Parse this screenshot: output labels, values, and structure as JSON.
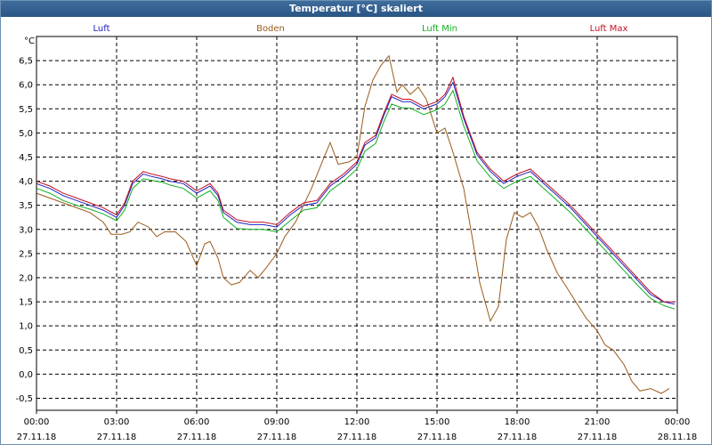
{
  "window": {
    "title": "Temperatur [°C] skaliert"
  },
  "chart_data": {
    "type": "line",
    "title": "Temperatur [°C] skaliert",
    "ylabel": "°C",
    "ylim": [
      -0.75,
      7.0
    ],
    "xlim": [
      0,
      24
    ],
    "grid": true,
    "yticks": [
      {
        "v": 6.5,
        "label": "6,5"
      },
      {
        "v": 6.0,
        "label": "6,0"
      },
      {
        "v": 5.5,
        "label": "5,5"
      },
      {
        "v": 5.0,
        "label": "5,0"
      },
      {
        "v": 4.5,
        "label": "4,5"
      },
      {
        "v": 4.0,
        "label": "4,0"
      },
      {
        "v": 3.5,
        "label": "3,5"
      },
      {
        "v": 3.0,
        "label": "3,0"
      },
      {
        "v": 2.5,
        "label": "2,5"
      },
      {
        "v": 2.0,
        "label": "2,0"
      },
      {
        "v": 1.5,
        "label": "1,5"
      },
      {
        "v": 1.0,
        "label": "1,0"
      },
      {
        "v": 0.5,
        "label": "0,5"
      },
      {
        "v": 0.0,
        "label": "0,0"
      },
      {
        "v": -0.5,
        "label": "-0,5"
      }
    ],
    "xticks": [
      {
        "v": 0,
        "time": "00:00",
        "date": "27.11.18"
      },
      {
        "v": 3,
        "time": "03:00",
        "date": "27.11.18"
      },
      {
        "v": 6,
        "time": "06:00",
        "date": "27.11.18"
      },
      {
        "v": 9,
        "time": "09:00",
        "date": "27.11.18"
      },
      {
        "v": 12,
        "time": "12:00",
        "date": "27.11.18"
      },
      {
        "v": 15,
        "time": "15:00",
        "date": "27.11.18"
      },
      {
        "v": 18,
        "time": "18:00",
        "date": "27.11.18"
      },
      {
        "v": 21,
        "time": "21:00",
        "date": "27.11.18"
      },
      {
        "v": 24,
        "time": "00:00",
        "date": "28.11.18"
      }
    ],
    "series": [
      {
        "name": "Luft",
        "color": "#2020c0",
        "x": [
          0,
          0.5,
          1,
          1.5,
          2,
          2.5,
          3,
          3.3,
          3.6,
          4,
          4.3,
          4.7,
          5,
          5.5,
          6,
          6.5,
          6.8,
          7,
          7.5,
          8,
          8.5,
          9,
          9.5,
          10,
          10.5,
          11,
          11.5,
          12,
          12.3,
          12.7,
          13,
          13.3,
          13.7,
          14,
          14.5,
          15,
          15.3,
          15.6,
          16,
          16.5,
          17,
          17.5,
          18,
          18.5,
          19,
          19.5,
          20,
          20.5,
          21,
          21.5,
          22,
          22.5,
          23,
          23.5,
          23.9
        ],
        "y": [
          3.95,
          3.85,
          3.7,
          3.6,
          3.5,
          3.4,
          3.25,
          3.5,
          3.95,
          4.15,
          4.1,
          4.05,
          4.0,
          3.95,
          3.75,
          3.9,
          3.7,
          3.35,
          3.15,
          3.1,
          3.1,
          3.05,
          3.3,
          3.5,
          3.55,
          3.9,
          4.1,
          4.35,
          4.75,
          4.9,
          5.35,
          5.75,
          5.65,
          5.65,
          5.5,
          5.6,
          5.75,
          6.05,
          5.3,
          4.55,
          4.2,
          3.95,
          4.1,
          4.2,
          3.95,
          3.7,
          3.45,
          3.15,
          2.85,
          2.55,
          2.25,
          1.95,
          1.65,
          1.5,
          1.45
        ]
      },
      {
        "name": "Boden",
        "color": "#9a5a1a",
        "x": [
          0,
          0.5,
          1,
          1.5,
          2,
          2.5,
          2.8,
          3.2,
          3.5,
          3.8,
          4.2,
          4.5,
          4.8,
          5.2,
          5.6,
          6,
          6.3,
          6.5,
          6.8,
          7,
          7.3,
          7.6,
          8,
          8.3,
          8.6,
          9,
          9.3,
          9.7,
          10,
          10.3,
          10.7,
          11,
          11.3,
          11.7,
          12,
          12.3,
          12.6,
          12.9,
          13.2,
          13.5,
          13.7,
          14,
          14.3,
          14.6,
          15,
          15.3,
          15.6,
          16,
          16.3,
          16.6,
          17,
          17.3,
          17.6,
          17.9,
          18.2,
          18.5,
          18.8,
          19.1,
          19.5,
          19.8,
          20.2,
          20.6,
          21,
          21.3,
          21.6,
          22,
          22.3,
          22.6,
          23,
          23.4,
          23.7
        ],
        "y": [
          3.75,
          3.65,
          3.55,
          3.45,
          3.35,
          3.15,
          2.9,
          2.9,
          2.95,
          3.15,
          3.05,
          2.85,
          2.95,
          2.95,
          2.75,
          2.25,
          2.7,
          2.75,
          2.4,
          2.0,
          1.85,
          1.9,
          2.15,
          2.0,
          2.2,
          2.5,
          2.85,
          3.15,
          3.5,
          3.85,
          4.4,
          4.8,
          4.35,
          4.4,
          4.5,
          5.55,
          6.1,
          6.4,
          6.6,
          5.85,
          6.0,
          5.8,
          5.95,
          5.7,
          5.0,
          5.1,
          4.6,
          3.85,
          2.9,
          1.9,
          1.1,
          1.4,
          2.8,
          3.35,
          3.25,
          3.35,
          3.05,
          2.6,
          2.1,
          1.85,
          1.5,
          1.15,
          0.9,
          0.6,
          0.5,
          0.2,
          -0.15,
          -0.35,
          -0.3,
          -0.4,
          -0.3
        ]
      },
      {
        "name": "Luft Min",
        "color": "#10b020",
        "x": [
          0,
          0.5,
          1,
          1.5,
          2,
          2.5,
          3,
          3.3,
          3.6,
          4,
          4.3,
          4.7,
          5,
          5.5,
          6,
          6.5,
          6.8,
          7,
          7.5,
          8,
          8.5,
          9,
          9.5,
          10,
          10.5,
          11,
          11.5,
          12,
          12.3,
          12.7,
          13,
          13.3,
          13.7,
          14,
          14.5,
          15,
          15.3,
          15.6,
          16,
          16.5,
          17,
          17.5,
          18,
          18.5,
          19,
          19.5,
          20,
          20.5,
          21,
          21.5,
          22,
          22.5,
          23,
          23.5,
          23.9
        ],
        "y": [
          3.85,
          3.75,
          3.6,
          3.5,
          3.42,
          3.32,
          3.18,
          3.4,
          3.85,
          4.05,
          4.02,
          3.98,
          3.92,
          3.85,
          3.65,
          3.8,
          3.6,
          3.25,
          3.02,
          3.0,
          3.0,
          2.95,
          3.18,
          3.4,
          3.45,
          3.8,
          4.0,
          4.25,
          4.62,
          4.78,
          5.22,
          5.6,
          5.52,
          5.52,
          5.38,
          5.48,
          5.6,
          5.88,
          5.15,
          4.42,
          4.08,
          3.85,
          4.0,
          4.1,
          3.85,
          3.6,
          3.35,
          3.05,
          2.75,
          2.45,
          2.15,
          1.85,
          1.57,
          1.42,
          1.35
        ]
      },
      {
        "name": "Luft Max",
        "color": "#c01020",
        "x": [
          0,
          0.5,
          1,
          1.5,
          2,
          2.5,
          3,
          3.3,
          3.6,
          4,
          4.3,
          4.7,
          5,
          5.5,
          6,
          6.5,
          6.8,
          7,
          7.5,
          8,
          8.5,
          9,
          9.5,
          10,
          10.5,
          11,
          11.5,
          12,
          12.3,
          12.7,
          13,
          13.3,
          13.7,
          14,
          14.5,
          15,
          15.3,
          15.6,
          16,
          16.5,
          17,
          17.5,
          18,
          18.5,
          19,
          19.5,
          20,
          20.5,
          21,
          21.5,
          22,
          22.5,
          23,
          23.5,
          23.9
        ],
        "y": [
          4.0,
          3.9,
          3.75,
          3.65,
          3.55,
          3.45,
          3.3,
          3.55,
          4.0,
          4.2,
          4.15,
          4.1,
          4.05,
          4.0,
          3.8,
          3.95,
          3.75,
          3.4,
          3.2,
          3.15,
          3.15,
          3.1,
          3.35,
          3.55,
          3.6,
          3.95,
          4.15,
          4.4,
          4.8,
          4.95,
          5.4,
          5.8,
          5.7,
          5.7,
          5.55,
          5.65,
          5.8,
          6.15,
          5.35,
          4.6,
          4.25,
          4.0,
          4.15,
          4.25,
          4.0,
          3.75,
          3.5,
          3.2,
          2.9,
          2.6,
          2.3,
          2.0,
          1.7,
          1.5,
          1.5
        ]
      }
    ]
  }
}
